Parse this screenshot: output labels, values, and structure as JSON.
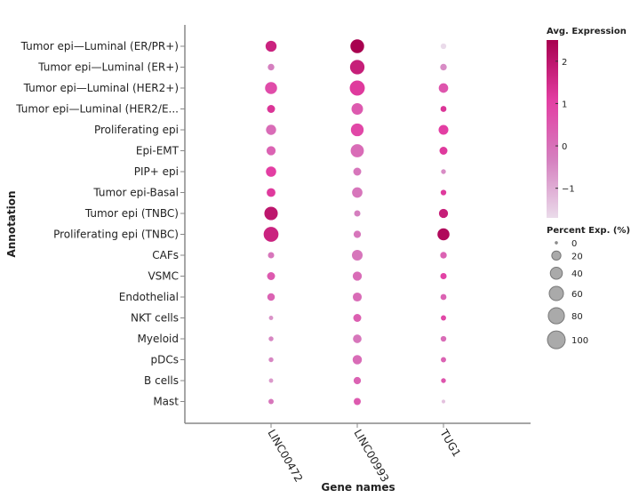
{
  "chart_data": {
    "type": "dotplot",
    "xlabel": "Gene names",
    "ylabel": "Annotation",
    "genes": [
      "LINC00472",
      "LINC00993",
      "TUG1"
    ],
    "rows": [
      "Tumor epi—Luminal (ER/PR+)",
      "Tumor epi—Luminal (ER+)",
      "Tumor epi—Luminal (HER2+)",
      "Tumor epi—Luminal (HER2/E...",
      "Proliferating epi",
      "Epi-EMT",
      "PIP+ epi",
      "Tumor epi-Basal",
      "Tumor epi (TNBC)",
      "Proliferating epi (TNBC)",
      "CAFs",
      "VSMC",
      "Endothelial",
      "NKT cells",
      "Myeloid",
      "pDCs",
      "B cells",
      "Mast"
    ],
    "avg_expression": [
      [
        1.7,
        2.5,
        -1.7
      ],
      [
        -0.3,
        1.8,
        -0.5
      ],
      [
        0.8,
        1.2,
        0.6
      ],
      [
        1.3,
        0.5,
        1.3
      ],
      [
        0.1,
        0.9,
        1.1
      ],
      [
        0.3,
        0.1,
        1.2
      ],
      [
        1.1,
        -0.1,
        -0.5
      ],
      [
        1.2,
        -0.1,
        1.2
      ],
      [
        2.0,
        -0.3,
        1.8
      ],
      [
        1.7,
        -0.1,
        2.3
      ],
      [
        -0.1,
        -0.1,
        0.3
      ],
      [
        0.5,
        0.1,
        1.0
      ],
      [
        0.3,
        0.1,
        0.3
      ],
      [
        -0.6,
        0.4,
        0.9
      ],
      [
        -0.4,
        -0.1,
        0.1
      ],
      [
        -0.4,
        0.1,
        0.3
      ],
      [
        -0.7,
        0.3,
        0.6
      ],
      [
        -0.1,
        0.5,
        -1.3
      ]
    ],
    "percent_expressed": [
      [
        32,
        55,
        5
      ],
      [
        8,
        62,
        8
      ],
      [
        40,
        68,
        22
      ],
      [
        14,
        36,
        6
      ],
      [
        26,
        46,
        24
      ],
      [
        20,
        50,
        14
      ],
      [
        27,
        14,
        3
      ],
      [
        18,
        28,
        5
      ],
      [
        52,
        7,
        20
      ],
      [
        66,
        11,
        40
      ],
      [
        7,
        30,
        8
      ],
      [
        14,
        20,
        7
      ],
      [
        12,
        19,
        6
      ],
      [
        2,
        14,
        4
      ],
      [
        3,
        17,
        5
      ],
      [
        3,
        21,
        4
      ],
      [
        2,
        11,
        3
      ],
      [
        4,
        10,
        1
      ]
    ],
    "color_legend": {
      "title": "Avg. Expression",
      "ticks": [
        2,
        1,
        0,
        -1
      ],
      "range": [
        -1.7,
        2.5
      ],
      "colors": [
        "#eadbea",
        "#d57fbf",
        "#e33ea3",
        "#a8004f"
      ]
    },
    "size_legend": {
      "title": "Percent Exp. (%)",
      "values": [
        0,
        20,
        40,
        60,
        80,
        100
      ]
    }
  }
}
